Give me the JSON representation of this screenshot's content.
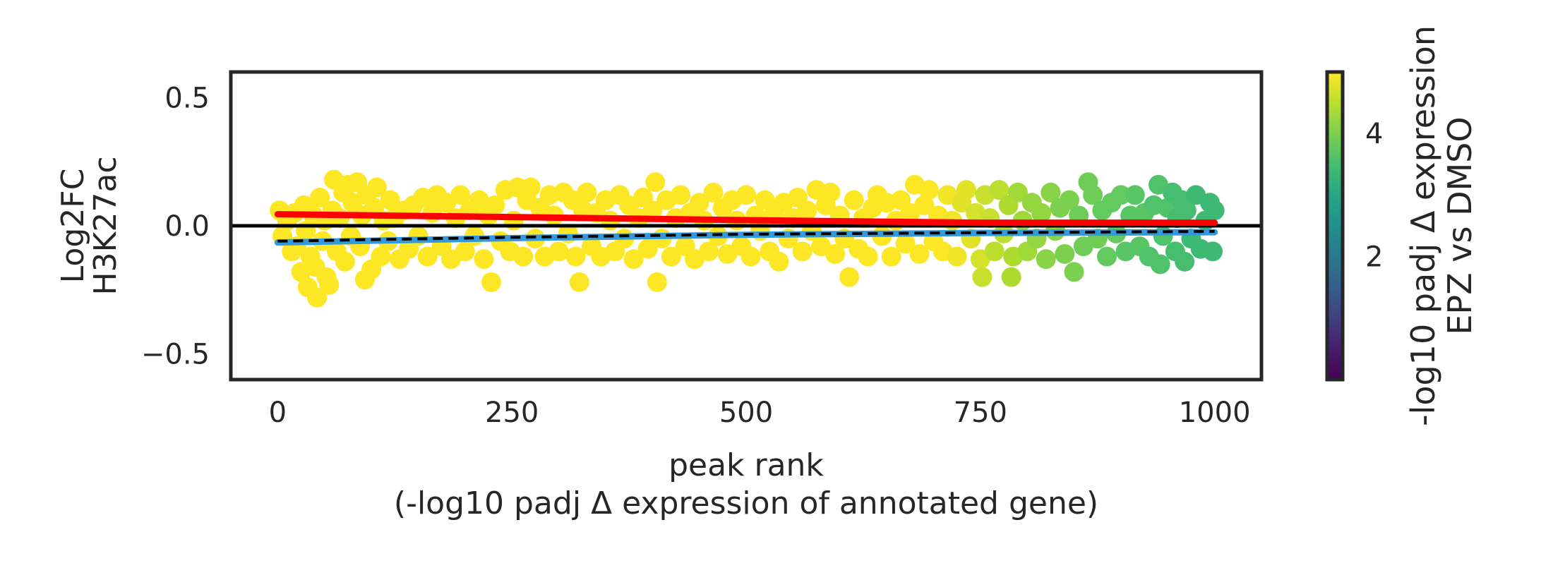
{
  "chart_data": {
    "type": "scatter",
    "xlabel_lines": [
      "peak rank",
      "(-log10 padj Δ expression of annotated gene)"
    ],
    "ylabel_lines": [
      "Log2FC",
      "H3K27ac"
    ],
    "xlim": [
      -50,
      1050
    ],
    "ylim": [
      -0.6,
      0.6
    ],
    "x_ticks": [
      0,
      250,
      500,
      750,
      1000
    ],
    "x_tick_labels": [
      "0",
      "250",
      "500",
      "750",
      "1000"
    ],
    "y_ticks": [
      0.5,
      0.0,
      -0.5
    ],
    "y_tick_labels": [
      "0.5",
      "0.0",
      "−0.5"
    ],
    "grid": false,
    "zero_line": {
      "y": 0.0,
      "color": "#000000"
    },
    "colormap": "viridis",
    "colorbar": {
      "label_lines": [
        "-log10 padj Δ expression",
        "EPZ vs DMSO"
      ],
      "range": [
        0.0,
        5.0
      ],
      "ticks": [
        2,
        4
      ],
      "tick_labels": [
        "2",
        "4"
      ]
    },
    "points": [
      [
        2,
        0.06,
        5.0
      ],
      [
        5,
        -0.04,
        5.0
      ],
      [
        10,
        0.02,
        5.0
      ],
      [
        15,
        -0.1,
        5.0
      ],
      [
        18,
        0.05,
        5.0
      ],
      [
        20,
        -0.08,
        5.0
      ],
      [
        25,
        -0.18,
        5.0
      ],
      [
        28,
        0.08,
        5.0
      ],
      [
        30,
        -0.02,
        5.0
      ],
      [
        32,
        -0.24,
        5.0
      ],
      [
        35,
        -0.12,
        5.0
      ],
      [
        38,
        0.04,
        5.0
      ],
      [
        40,
        -0.16,
        5.0
      ],
      [
        42,
        -0.28,
        5.0
      ],
      [
        45,
        0.11,
        5.0
      ],
      [
        48,
        -0.06,
        5.0
      ],
      [
        50,
        0.02,
        5.0
      ],
      [
        52,
        -0.2,
        5.0
      ],
      [
        55,
        -0.23,
        5.0
      ],
      [
        58,
        0.06,
        5.0
      ],
      [
        60,
        0.18,
        5.0
      ],
      [
        63,
        -0.1,
        5.0
      ],
      [
        66,
        0.03,
        5.0
      ],
      [
        70,
        0.13,
        5.0
      ],
      [
        72,
        -0.14,
        5.0
      ],
      [
        75,
        0.16,
        5.0
      ],
      [
        78,
        -0.04,
        5.0
      ],
      [
        80,
        0.09,
        5.0
      ],
      [
        85,
        0.17,
        5.0
      ],
      [
        88,
        -0.08,
        5.0
      ],
      [
        90,
        0.04,
        5.0
      ],
      [
        93,
        -0.21,
        5.0
      ],
      [
        95,
        0.12,
        5.0
      ],
      [
        100,
        -0.17,
        5.0
      ],
      [
        103,
        0.07,
        5.0
      ],
      [
        106,
        0.15,
        5.0
      ],
      [
        110,
        -0.12,
        5.0
      ],
      [
        113,
        0.02,
        5.0
      ],
      [
        118,
        -0.06,
        5.0
      ],
      [
        120,
        0.1,
        5.0
      ],
      [
        125,
        0.03,
        5.0
      ],
      [
        130,
        -0.13,
        5.0
      ],
      [
        135,
        0.06,
        5.0
      ],
      [
        140,
        -0.09,
        5.0
      ],
      [
        145,
        0.08,
        5.0
      ],
      [
        150,
        -0.04,
        5.0
      ],
      [
        155,
        0.11,
        5.0
      ],
      [
        160,
        -0.12,
        5.0
      ],
      [
        165,
        0.05,
        5.0
      ],
      [
        170,
        0.12,
        5.0
      ],
      [
        175,
        -0.08,
        5.0
      ],
      [
        180,
        0.09,
        5.0
      ],
      [
        185,
        -0.13,
        5.0
      ],
      [
        190,
        0.03,
        5.0
      ],
      [
        195,
        0.12,
        5.0
      ],
      [
        200,
        -0.1,
        5.0
      ],
      [
        205,
        0.06,
        5.0
      ],
      [
        210,
        -0.04,
        5.0
      ],
      [
        215,
        0.1,
        5.0
      ],
      [
        220,
        -0.13,
        5.0
      ],
      [
        225,
        0.04,
        5.0
      ],
      [
        228,
        -0.22,
        5.0
      ],
      [
        232,
        0.08,
        5.0
      ],
      [
        238,
        -0.06,
        5.0
      ],
      [
        243,
        0.14,
        5.0
      ],
      [
        248,
        -0.1,
        5.0
      ],
      [
        252,
        0.02,
        5.0
      ],
      [
        256,
        0.15,
        5.0
      ],
      [
        262,
        -0.12,
        5.0
      ],
      [
        266,
        0.1,
        5.0
      ],
      [
        270,
        0.15,
        5.0
      ],
      [
        275,
        -0.05,
        5.0
      ],
      [
        280,
        0.07,
        5.0
      ],
      [
        285,
        -0.12,
        5.0
      ],
      [
        290,
        0.12,
        5.0
      ],
      [
        295,
        0.04,
        5.0
      ],
      [
        300,
        -0.1,
        5.0
      ],
      [
        305,
        0.13,
        5.0
      ],
      [
        310,
        -0.03,
        5.0
      ],
      [
        315,
        0.1,
        5.0
      ],
      [
        318,
        -0.12,
        5.0
      ],
      [
        322,
        -0.22,
        5.0
      ],
      [
        326,
        0.06,
        5.0
      ],
      [
        330,
        0.13,
        5.0
      ],
      [
        335,
        -0.08,
        5.0
      ],
      [
        340,
        0.05,
        5.0
      ],
      [
        345,
        -0.12,
        5.0
      ],
      [
        350,
        0.1,
        5.0
      ],
      [
        355,
        0.02,
        5.0
      ],
      [
        360,
        -0.1,
        5.0
      ],
      [
        365,
        0.12,
        5.0
      ],
      [
        370,
        -0.05,
        5.0
      ],
      [
        375,
        0.08,
        5.0
      ],
      [
        380,
        -0.13,
        5.0
      ],
      [
        385,
        0.03,
        5.0
      ],
      [
        390,
        0.11,
        5.0
      ],
      [
        395,
        -0.09,
        5.0
      ],
      [
        400,
        0.06,
        5.0
      ],
      [
        403,
        0.17,
        5.0
      ],
      [
        405,
        -0.22,
        5.0
      ],
      [
        410,
        -0.05,
        5.0
      ],
      [
        415,
        0.1,
        5.0
      ],
      [
        420,
        -0.12,
        5.0
      ],
      [
        425,
        0.03,
        5.0
      ],
      [
        430,
        0.12,
        5.0
      ],
      [
        435,
        -0.08,
        5.0
      ],
      [
        440,
        0.05,
        5.0
      ],
      [
        445,
        -0.13,
        5.0
      ],
      [
        450,
        0.09,
        5.0
      ],
      [
        455,
        0.02,
        5.0
      ],
      [
        460,
        -0.1,
        5.0
      ],
      [
        465,
        0.13,
        5.0
      ],
      [
        470,
        -0.04,
        5.0
      ],
      [
        475,
        0.07,
        5.0
      ],
      [
        480,
        -0.11,
        5.0
      ],
      [
        485,
        0.1,
        5.0
      ],
      [
        490,
        0.02,
        5.0
      ],
      [
        495,
        -0.08,
        5.0
      ],
      [
        500,
        0.12,
        5.0
      ],
      [
        505,
        -0.12,
        5.0
      ],
      [
        510,
        0.04,
        5.0
      ],
      [
        515,
        -0.02,
        5.0
      ],
      [
        520,
        0.1,
        5.0
      ],
      [
        525,
        -0.1,
        5.0
      ],
      [
        530,
        0.05,
        5.0
      ],
      [
        535,
        -0.14,
        5.0
      ],
      [
        540,
        0.09,
        5.0
      ],
      [
        545,
        -0.05,
        5.0
      ],
      [
        550,
        0.03,
        5.0
      ],
      [
        555,
        0.11,
        5.0
      ],
      [
        560,
        -0.1,
        5.0
      ],
      [
        565,
        0.06,
        5.0
      ],
      [
        570,
        -0.02,
        5.0
      ],
      [
        575,
        0.14,
        5.0
      ],
      [
        580,
        -0.08,
        5.0
      ],
      [
        585,
        0.08,
        5.0
      ],
      [
        590,
        0.13,
        5.0
      ],
      [
        595,
        -0.11,
        5.0
      ],
      [
        600,
        0.04,
        5.0
      ],
      [
        605,
        -0.05,
        5.0
      ],
      [
        610,
        -0.2,
        5.0
      ],
      [
        615,
        0.1,
        5.0
      ],
      [
        620,
        -0.09,
        5.0
      ],
      [
        625,
        0.03,
        5.0
      ],
      [
        630,
        -0.12,
        5.0
      ],
      [
        635,
        0.07,
        5.0
      ],
      [
        640,
        0.12,
        5.0
      ],
      [
        645,
        -0.04,
        5.0
      ],
      [
        650,
        0.09,
        5.0
      ],
      [
        655,
        -0.12,
        5.0
      ],
      [
        660,
        0.02,
        5.0
      ],
      [
        665,
        0.1,
        5.0
      ],
      [
        670,
        -0.07,
        5.0
      ],
      [
        675,
        0.05,
        5.0
      ],
      [
        680,
        0.16,
        5.0
      ],
      [
        685,
        -0.11,
        5.0
      ],
      [
        690,
        0.08,
        5.0
      ],
      [
        695,
        0.14,
        5.0
      ],
      [
        700,
        -0.06,
        5.0
      ],
      [
        705,
        0.04,
        5.0
      ],
      [
        710,
        -0.1,
        5.0
      ],
      [
        715,
        0.12,
        4.9
      ],
      [
        720,
        0.02,
        4.9
      ],
      [
        725,
        -0.12,
        4.9
      ],
      [
        730,
        0.09,
        4.8
      ],
      [
        735,
        0.14,
        4.8
      ],
      [
        740,
        -0.05,
        4.8
      ],
      [
        745,
        0.05,
        4.7
      ],
      [
        750,
        -0.13,
        4.7
      ],
      [
        752,
        -0.2,
        4.6
      ],
      [
        755,
        0.12,
        4.6
      ],
      [
        760,
        0.03,
        4.6
      ],
      [
        765,
        -0.1,
        4.5
      ],
      [
        770,
        0.14,
        4.5
      ],
      [
        775,
        -0.03,
        4.5
      ],
      [
        780,
        0.08,
        4.4
      ],
      [
        783,
        -0.2,
        4.4
      ],
      [
        785,
        -0.12,
        4.4
      ],
      [
        790,
        0.13,
        4.3
      ],
      [
        795,
        0.02,
        4.3
      ],
      [
        800,
        -0.1,
        4.3
      ],
      [
        805,
        0.09,
        4.2
      ],
      [
        810,
        -0.05,
        4.2
      ],
      [
        815,
        0.05,
        4.2
      ],
      [
        820,
        -0.13,
        4.1
      ],
      [
        825,
        0.13,
        4.1
      ],
      [
        830,
        -0.02,
        4.1
      ],
      [
        835,
        0.07,
        4.0
      ],
      [
        840,
        -0.11,
        4.0
      ],
      [
        845,
        0.1,
        4.0
      ],
      [
        850,
        -0.18,
        4.0
      ],
      [
        855,
        0.04,
        3.9
      ],
      [
        860,
        -0.08,
        3.9
      ],
      [
        865,
        0.17,
        3.9
      ],
      [
        870,
        0.12,
        3.9
      ],
      [
        875,
        -0.05,
        3.9
      ],
      [
        880,
        0.06,
        3.8
      ],
      [
        885,
        -0.12,
        3.8
      ],
      [
        890,
        0.09,
        3.8
      ],
      [
        895,
        -0.03,
        3.8
      ],
      [
        900,
        0.12,
        3.8
      ],
      [
        905,
        -0.1,
        3.7
      ],
      [
        910,
        0.04,
        3.7
      ],
      [
        915,
        0.12,
        3.7
      ],
      [
        920,
        -0.08,
        3.7
      ],
      [
        925,
        0.05,
        3.7
      ],
      [
        930,
        -0.12,
        3.6
      ],
      [
        935,
        0.08,
        3.6
      ],
      [
        940,
        0.16,
        3.6
      ],
      [
        942,
        -0.15,
        3.6
      ],
      [
        945,
        -0.04,
        3.6
      ],
      [
        950,
        0.07,
        3.6
      ],
      [
        955,
        0.13,
        3.5
      ],
      [
        958,
        -0.1,
        3.5
      ],
      [
        960,
        0.03,
        3.5
      ],
      [
        965,
        0.1,
        3.5
      ],
      [
        968,
        -0.14,
        3.5
      ],
      [
        970,
        0.06,
        3.5
      ],
      [
        975,
        -0.05,
        3.4
      ],
      [
        980,
        0.12,
        3.4
      ],
      [
        985,
        -0.09,
        3.4
      ],
      [
        990,
        0.02,
        3.4
      ],
      [
        995,
        0.09,
        3.4
      ],
      [
        998,
        -0.1,
        3.4
      ],
      [
        1000,
        0.06,
        3.4
      ]
    ],
    "lines": [
      {
        "color": "#ff0000",
        "style": "solid",
        "points": [
          [
            0,
            0.045
          ],
          [
            250,
            0.034
          ],
          [
            500,
            0.022
          ],
          [
            750,
            0.012
          ],
          [
            1000,
            0.012
          ]
        ]
      },
      {
        "color": "#3399dd",
        "style": "solid",
        "points": [
          [
            0,
            -0.065
          ],
          [
            250,
            -0.048
          ],
          [
            500,
            -0.035
          ],
          [
            750,
            -0.028
          ],
          [
            1000,
            -0.025
          ]
        ]
      },
      {
        "color": "#000000",
        "style": "dashed",
        "points": [
          [
            0,
            -0.06
          ],
          [
            250,
            -0.045
          ],
          [
            500,
            -0.033
          ],
          [
            750,
            -0.027
          ],
          [
            1000,
            -0.022
          ]
        ]
      }
    ]
  }
}
